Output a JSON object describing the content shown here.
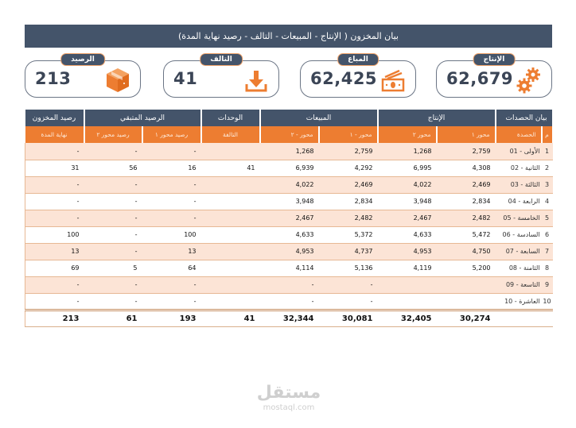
{
  "title": "بيان المخزون ( الإنتاج - المبيعات - التالف - رصيد نهاية المدة)",
  "kpis": [
    {
      "label": "الرصيد",
      "value": "213",
      "icon": "box-icon"
    },
    {
      "label": "التالف",
      "value": "41",
      "icon": "download-icon"
    },
    {
      "label": "المباع",
      "value": "62,425",
      "icon": "money-icon"
    },
    {
      "label": "الإنتاج",
      "value": "62,679",
      "icon": "gears-icon"
    }
  ],
  "colors": {
    "header_dark": "#44546a",
    "accent_orange": "#ed7d31",
    "row_tint": "#fce4d6"
  },
  "table": {
    "group_headers": {
      "stock_balance": "رصيد المخزون",
      "remaining_balance": "الرصيد المتبقي",
      "units": "الوحدات",
      "sales": "المبيعات",
      "production": "الإنتاج",
      "batches": "بيان الحصدات"
    },
    "sub_headers": {
      "end_of_period": "نهاية المدة",
      "balance_axis2": "رصيد محور ٢",
      "balance_axis1": "رصيد محور ١",
      "damaged": "التالفة",
      "sales_axis2": "محور - ٢",
      "sales_axis1": "محور - ١",
      "prod_axis2": "محور ٢",
      "prod_axis1": "محور ١",
      "batch": "الحصدة",
      "index": "م"
    },
    "rows": [
      {
        "idx": "1",
        "batch": "الأولى - 01",
        "p1": "2,759",
        "p2": "1,268",
        "s1": "2,759",
        "s2": "1,268",
        "dmg": "",
        "b1": "-",
        "b2": "-",
        "end": "-"
      },
      {
        "idx": "2",
        "batch": "الثانية - 02",
        "p1": "4,308",
        "p2": "6,995",
        "s1": "4,292",
        "s2": "6,939",
        "dmg": "41",
        "b1": "16",
        "b2": "56",
        "end": "31"
      },
      {
        "idx": "3",
        "batch": "الثالثة - 03",
        "p1": "2,469",
        "p2": "4,022",
        "s1": "2,469",
        "s2": "4,022",
        "dmg": "",
        "b1": "-",
        "b2": "-",
        "end": "-"
      },
      {
        "idx": "4",
        "batch": "الرابعة - 04",
        "p1": "2,834",
        "p2": "3,948",
        "s1": "2,834",
        "s2": "3,948",
        "dmg": "",
        "b1": "-",
        "b2": "-",
        "end": "-"
      },
      {
        "idx": "5",
        "batch": "الخامسة - 05",
        "p1": "2,482",
        "p2": "2,467",
        "s1": "2,482",
        "s2": "2,467",
        "dmg": "",
        "b1": "-",
        "b2": "-",
        "end": "-"
      },
      {
        "idx": "6",
        "batch": "السادسة - 06",
        "p1": "5,472",
        "p2": "4,633",
        "s1": "5,372",
        "s2": "4,633",
        "dmg": "",
        "b1": "100",
        "b2": "-",
        "end": "100"
      },
      {
        "idx": "7",
        "batch": "السابعة - 07",
        "p1": "4,750",
        "p2": "4,953",
        "s1": "4,737",
        "s2": "4,953",
        "dmg": "",
        "b1": "13",
        "b2": "-",
        "end": "13"
      },
      {
        "idx": "8",
        "batch": "الثامنة - 08",
        "p1": "5,200",
        "p2": "4,119",
        "s1": "5,136",
        "s2": "4,114",
        "dmg": "",
        "b1": "64",
        "b2": "5",
        "end": "69"
      },
      {
        "idx": "9",
        "batch": "التاسعة - 09",
        "p1": "",
        "p2": "",
        "s1": "-",
        "s2": "-",
        "dmg": "",
        "b1": "-",
        "b2": "-",
        "end": "-"
      },
      {
        "idx": "10",
        "batch": "العاشرة - 10",
        "p1": "",
        "p2": "",
        "s1": "-",
        "s2": "-",
        "dmg": "",
        "b1": "-",
        "b2": "-",
        "end": "-"
      }
    ],
    "totals": {
      "p1": "30,274",
      "p2": "32,405",
      "s1": "30,081",
      "s2": "32,344",
      "dmg": "41",
      "b1": "193",
      "b2": "61",
      "end": "213"
    }
  },
  "watermark": {
    "arabic": "مستقل",
    "latin": "mostaql.com"
  }
}
